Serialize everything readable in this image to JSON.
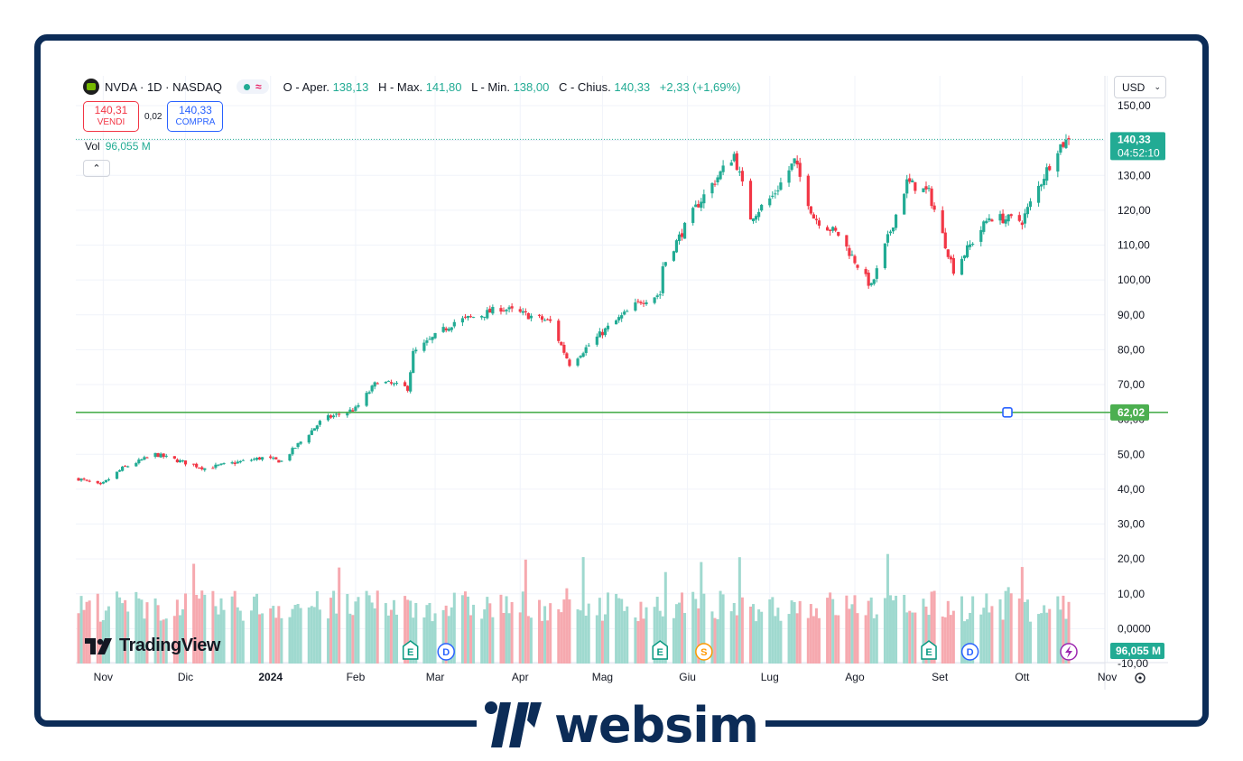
{
  "legend": {
    "symbol": "NVDA · 1D · NASDAQ",
    "open_label": "O - Aper.",
    "open": "138,13",
    "high_label": "H - Max.",
    "high": "141,80",
    "low_label": "L - Min.",
    "low": "138,00",
    "close_label": "C - Chius.",
    "close": "140,33",
    "change": "+2,33 (+1,69%)",
    "pill_wave": "≈"
  },
  "trade": {
    "sell_price": "140,31",
    "sell_label": "VENDI",
    "spread": "0,02",
    "buy_price": "140,33",
    "buy_label": "COMPRA"
  },
  "volume": {
    "label": "Vol",
    "value": "96,055 M"
  },
  "currency": "USD",
  "tradingview": "TradingView",
  "brand": "websim",
  "price_axis": {
    "last_price": "140,33",
    "countdown": "04:52:10",
    "line_price": "62,02",
    "volume_tag": "96,055 M"
  },
  "colors": {
    "up": "#22ab94",
    "down": "#f23645",
    "horizontal_line": "#4caf50",
    "frame": "#0c2c57"
  },
  "events": [
    {
      "letter": "E",
      "type": "earnings",
      "date": "2024-02-21"
    },
    {
      "letter": "D",
      "type": "dividend",
      "date": "2024-03-05"
    },
    {
      "letter": "E",
      "type": "earnings",
      "date": "2024-05-22"
    },
    {
      "letter": "S",
      "type": "split",
      "date": "2024-06-07"
    },
    {
      "letter": "E",
      "type": "earnings",
      "date": "2024-08-28"
    },
    {
      "letter": "D",
      "type": "dividend",
      "date": "2024-09-12"
    }
  ],
  "chart_data": {
    "type": "candlestick",
    "y_ticks": [
      "150,00",
      "140,00",
      "130,00",
      "120,00",
      "110,00",
      "100,00",
      "90,00",
      "80,00",
      "70,00",
      "60,00",
      "50,00",
      "40,00",
      "30,00",
      "20,00",
      "10,00",
      "0,0000",
      "-10,00"
    ],
    "y_range": [
      -10,
      150
    ],
    "x_labels": [
      "Nov",
      "Dic",
      "2024",
      "Feb",
      "Mar",
      "Apr",
      "Mag",
      "Giu",
      "Lug",
      "Ago",
      "Set",
      "Ott",
      "Nov"
    ],
    "x_label_dates": [
      "2023-11-01",
      "2023-12-01",
      "2024-01-01",
      "2024-02-01",
      "2024-03-01",
      "2024-04-01",
      "2024-05-01",
      "2024-06-01",
      "2024-07-01",
      "2024-08-01",
      "2024-09-01",
      "2024-10-01",
      "2024-11-01"
    ],
    "x_range": [
      "2023-10-23",
      "2024-10-18"
    ],
    "horizontal_line": 62.02,
    "last_close": 140.33,
    "close_anchors": [
      [
        "2023-10-23",
        43
      ],
      [
        "2023-10-31",
        41
      ],
      [
        "2023-11-08",
        46
      ],
      [
        "2023-11-20",
        50
      ],
      [
        "2023-12-08",
        46
      ],
      [
        "2023-12-29",
        49
      ],
      [
        "2024-01-05",
        48
      ],
      [
        "2024-01-20",
        60
      ],
      [
        "2024-02-01",
        63
      ],
      [
        "2024-02-09",
        71
      ],
      [
        "2024-02-20",
        69
      ],
      [
        "2024-02-22",
        79
      ],
      [
        "2024-03-08",
        88
      ],
      [
        "2024-03-18",
        90
      ],
      [
        "2024-03-25",
        92
      ],
      [
        "2024-04-12",
        88
      ],
      [
        "2024-04-19",
        76
      ],
      [
        "2024-05-01",
        85
      ],
      [
        "2024-05-15",
        94
      ],
      [
        "2024-05-22",
        96
      ],
      [
        "2024-05-23",
        104
      ],
      [
        "2024-06-05",
        122
      ],
      [
        "2024-06-18",
        136
      ],
      [
        "2024-06-24",
        118
      ],
      [
        "2024-07-02",
        124
      ],
      [
        "2024-07-10",
        134
      ],
      [
        "2024-07-17",
        118
      ],
      [
        "2024-07-26",
        113
      ],
      [
        "2024-08-07",
        98
      ],
      [
        "2024-08-20",
        128
      ],
      [
        "2024-08-28",
        125
      ],
      [
        "2024-09-06",
        103
      ],
      [
        "2024-09-19",
        118
      ],
      [
        "2024-10-01",
        117
      ],
      [
        "2024-10-14",
        138
      ],
      [
        "2024-10-18",
        140.3
      ]
    ],
    "volume_range": [
      -10,
      150
    ]
  }
}
